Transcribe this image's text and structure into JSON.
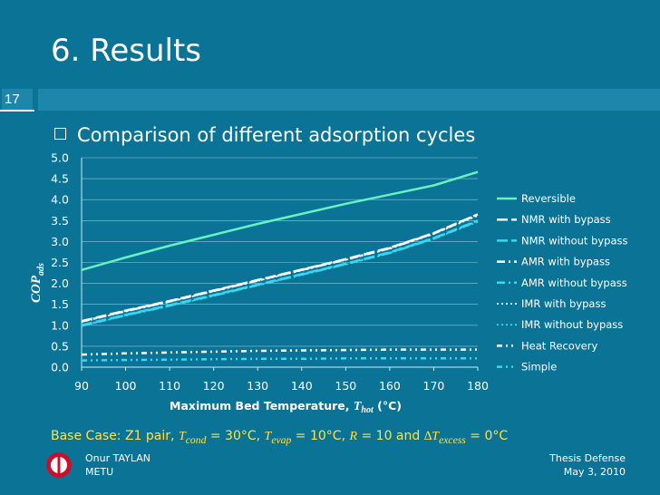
{
  "slide": {
    "title": "6. Results",
    "number": "17",
    "bullet": "Comparison of different adsorption cycles",
    "base_case": "Base Case: Z1 pair, T cond = 30°C, Tevap = 10°C, R = 10 and ΔTexcess = 0°C",
    "base_case_parts": {
      "prefix": "Base Case: Z1 pair, ",
      "t1": "T",
      "s1": "cond",
      "v1": " = 30°C, ",
      "t2": "T",
      "s2": "evap",
      "v2": " = 10°C, ",
      "t3": "R",
      "v3": " = 10 and ",
      "t4": "∆T",
      "s4": "excess",
      "v4": " = 0°C"
    },
    "footer": {
      "author": "Onur TAYLAN",
      "institution": "METU",
      "event": "Thesis Defense",
      "date": "May 3, 2010"
    },
    "colors": {
      "background": "#0b7396",
      "header_bar": "#1e86ab",
      "base_case": "#ffe24a",
      "reversible": "#66f2c2",
      "white_series": "#ffffff",
      "cyan_series": "#36d8f2"
    }
  },
  "chart_data": {
    "type": "line",
    "title": "",
    "xlabel_main": "Maximum Bed Temperature, ",
    "xlabel_var": "T",
    "xlabel_sub": "hot",
    "xlabel_unit": " (°C)",
    "ylabel_main": "COP",
    "ylabel_sub": "ads",
    "xlim": [
      90,
      180
    ],
    "ylim": [
      0,
      5
    ],
    "xticks": [
      "90",
      "100",
      "110",
      "120",
      "130",
      "140",
      "150",
      "160",
      "170",
      "180"
    ],
    "yticks": [
      "0.0",
      "0.5",
      "1.0",
      "1.5",
      "2.0",
      "2.5",
      "3.0",
      "3.5",
      "4.0",
      "4.5",
      "5.0"
    ],
    "grid": "horizontal",
    "legend_position": "right",
    "x": [
      90,
      100,
      110,
      120,
      130,
      140,
      150,
      160,
      170,
      180
    ],
    "series": [
      {
        "name": "Reversible",
        "color": "#66f2c2",
        "dash": "",
        "width": 2.5,
        "values": [
          2.32,
          2.62,
          2.9,
          3.16,
          3.42,
          3.66,
          3.9,
          4.12,
          4.34,
          4.66
        ]
      },
      {
        "name": "NMR with bypass",
        "color": "#ffffff",
        "dash": "12,4",
        "width": 2.5,
        "values": [
          1.1,
          1.35,
          1.58,
          1.83,
          2.08,
          2.33,
          2.58,
          2.85,
          3.2,
          3.65
        ]
      },
      {
        "name": "NMR without bypass",
        "color": "#36d8f2",
        "dash": "12,4",
        "width": 2.5,
        "values": [
          1.0,
          1.25,
          1.48,
          1.72,
          1.97,
          2.22,
          2.47,
          2.74,
          3.08,
          3.5
        ]
      },
      {
        "name": "AMR with bypass",
        "color": "#ffffff",
        "dash": "9,4,2,4",
        "width": 2.5,
        "values": [
          1.09,
          1.34,
          1.57,
          1.82,
          2.07,
          2.32,
          2.57,
          2.84,
          3.19,
          3.64
        ]
      },
      {
        "name": "AMR without bypass",
        "color": "#36d8f2",
        "dash": "9,4,2,4",
        "width": 2.5,
        "values": [
          0.99,
          1.24,
          1.47,
          1.71,
          1.96,
          2.21,
          2.46,
          2.73,
          3.07,
          3.49
        ]
      },
      {
        "name": "IMR with bypass",
        "color": "#ffffff",
        "dash": "2,3",
        "width": 1.8,
        "values": [
          1.08,
          1.33,
          1.56,
          1.81,
          2.06,
          2.31,
          2.56,
          2.83,
          3.18,
          3.62
        ]
      },
      {
        "name": "IMR without bypass",
        "color": "#36d8f2",
        "dash": "2,3",
        "width": 1.8,
        "values": [
          0.98,
          1.23,
          1.46,
          1.7,
          1.95,
          2.2,
          2.45,
          2.72,
          3.06,
          3.47
        ]
      },
      {
        "name": "Heat Recovery",
        "color": "#ffffff",
        "dash": "6,4,2,4,2,4",
        "width": 2.5,
        "values": [
          0.3,
          0.33,
          0.35,
          0.37,
          0.39,
          0.4,
          0.41,
          0.42,
          0.42,
          0.42
        ]
      },
      {
        "name": "Simple",
        "color": "#36d8f2",
        "dash": "6,4,2,4,2,4",
        "width": 2.5,
        "values": [
          0.16,
          0.17,
          0.18,
          0.19,
          0.2,
          0.2,
          0.21,
          0.21,
          0.21,
          0.21
        ]
      }
    ]
  }
}
